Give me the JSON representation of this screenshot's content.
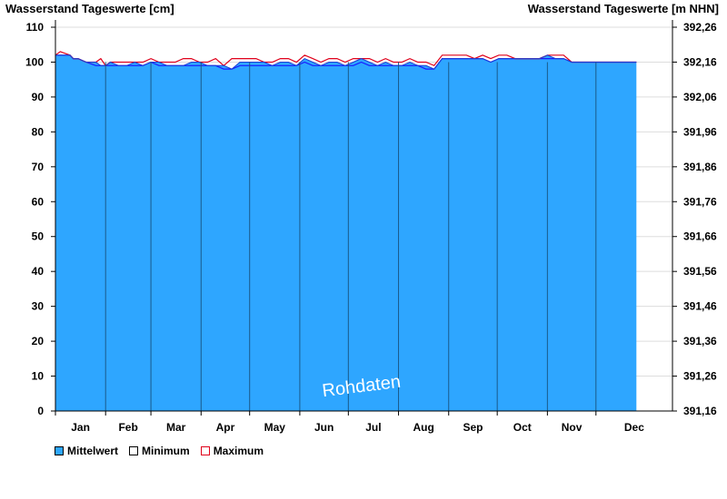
{
  "chart_data": {
    "type": "area",
    "ylabel_left": "Wasserstand Tageswerte [cm]",
    "ylabel_right": "Wasserstand Tageswerte [m NHN]",
    "watermark": "Rohdaten",
    "ylim": [
      0,
      110
    ],
    "yticks_left": [
      0,
      10,
      20,
      30,
      40,
      50,
      60,
      70,
      80,
      90,
      100,
      110
    ],
    "yticks_right": [
      "391,16",
      "391,26",
      "391,36",
      "391,46",
      "391,56",
      "391,66",
      "391,76",
      "391,86",
      "391,96",
      "392,06",
      "392,16",
      "392,26"
    ],
    "months": [
      "Jan",
      "Feb",
      "Mar",
      "Apr",
      "May",
      "Jun",
      "Jul",
      "Aug",
      "Sep",
      "Oct",
      "Nov",
      "Dec"
    ],
    "grid": true,
    "legend_position": "bottom-left",
    "series": [
      {
        "name": "Mittelwert",
        "color": "#2ea6ff",
        "x": [
          1,
          10,
          12,
          15,
          20,
          26,
          29,
          32,
          35,
          40,
          45,
          50,
          55,
          60,
          65,
          70,
          75,
          80,
          85,
          90,
          95,
          100,
          105,
          110,
          115,
          120,
          125,
          130,
          135,
          140,
          145,
          150,
          155,
          160,
          165,
          170,
          175,
          180,
          185,
          190,
          195,
          200,
          205,
          210,
          215,
          220,
          225,
          230,
          235,
          240,
          245,
          250,
          255,
          260,
          265,
          270,
          275,
          280,
          285,
          290,
          295,
          300,
          305,
          310,
          315,
          320,
          325,
          330,
          335,
          340,
          345,
          350,
          355,
          360
        ],
        "y": [
          102,
          102,
          101,
          101,
          100,
          100,
          99,
          99,
          100,
          99,
          99,
          100,
          99,
          100,
          100,
          99,
          99,
          99,
          100,
          100,
          99,
          99,
          99,
          98,
          100,
          100,
          100,
          100,
          99,
          100,
          100,
          99,
          101,
          100,
          99,
          100,
          100,
          99,
          100,
          101,
          100,
          99,
          100,
          99,
          99,
          100,
          99,
          99,
          98,
          101,
          101,
          101,
          101,
          101,
          101,
          100,
          101,
          101,
          101,
          101,
          101,
          101,
          102,
          101,
          101,
          100,
          100,
          100,
          100,
          100,
          100,
          100,
          100,
          100
        ]
      },
      {
        "name": "Minimum",
        "color": "#1a1aff",
        "x": [
          1,
          10,
          12,
          15,
          20,
          26,
          29,
          32,
          35,
          40,
          45,
          50,
          55,
          60,
          65,
          70,
          75,
          80,
          85,
          90,
          95,
          100,
          105,
          110,
          115,
          120,
          125,
          130,
          135,
          140,
          145,
          150,
          155,
          160,
          165,
          170,
          175,
          180,
          185,
          190,
          195,
          200,
          205,
          210,
          215,
          220,
          225,
          230,
          235,
          240,
          245,
          250,
          255,
          260,
          265,
          270,
          275,
          280,
          285,
          290,
          295,
          300,
          305,
          310,
          315,
          320,
          325,
          330,
          335,
          340,
          345,
          350,
          355,
          360
        ],
        "y": [
          102,
          102,
          101,
          101,
          100,
          99,
          99,
          99,
          99,
          99,
          99,
          99,
          99,
          100,
          99,
          99,
          99,
          99,
          99,
          99,
          99,
          99,
          98,
          98,
          99,
          99,
          99,
          99,
          99,
          99,
          99,
          99,
          100,
          99,
          99,
          99,
          99,
          99,
          99,
          100,
          99,
          99,
          99,
          99,
          99,
          99,
          99,
          98,
          98,
          101,
          101,
          101,
          101,
          101,
          101,
          100,
          101,
          101,
          101,
          101,
          101,
          101,
          101,
          101,
          101,
          100,
          100,
          100,
          100,
          100,
          100,
          100,
          100,
          100
        ]
      },
      {
        "name": "Maximum",
        "color": "#e0001a",
        "x": [
          1,
          4,
          10,
          12,
          15,
          20,
          26,
          29,
          32,
          35,
          40,
          45,
          50,
          55,
          60,
          65,
          70,
          75,
          80,
          85,
          90,
          95,
          100,
          105,
          110,
          115,
          120,
          125,
          130,
          135,
          140,
          145,
          150,
          155,
          160,
          165,
          170,
          175,
          180,
          185,
          190,
          195,
          200,
          205,
          210,
          215,
          220,
          225,
          230,
          235,
          240,
          245,
          250,
          255,
          260,
          265,
          270,
          275,
          280,
          285,
          290,
          295,
          300,
          305,
          310,
          315,
          320,
          325,
          330,
          335,
          340,
          345,
          350,
          355,
          360
        ],
        "y": [
          102,
          103,
          102,
          101,
          101,
          100,
          100,
          101,
          99,
          100,
          100,
          100,
          100,
          100,
          101,
          100,
          100,
          100,
          101,
          101,
          100,
          100,
          101,
          99,
          101,
          101,
          101,
          101,
          100,
          100,
          101,
          101,
          100,
          102,
          101,
          100,
          101,
          101,
          100,
          101,
          101,
          101,
          100,
          101,
          100,
          100,
          101,
          100,
          100,
          99,
          102,
          102,
          102,
          102,
          101,
          102,
          101,
          102,
          102,
          101,
          101,
          101,
          101,
          102,
          102,
          102,
          100,
          100,
          100,
          100,
          100,
          100,
          100,
          100,
          100
        ]
      }
    ]
  }
}
